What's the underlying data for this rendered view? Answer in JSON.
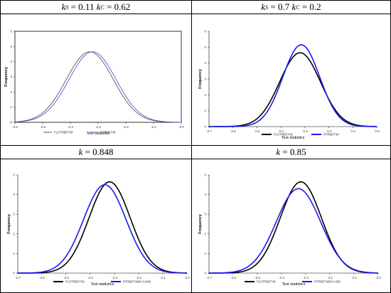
{
  "panels": [
    {
      "title_lead": "k",
      "title_sub1": "S",
      "title_mid": " = 0.11 ",
      "title_k2": "k",
      "title_sub2": "C",
      "title_tail": " = 0.62",
      "chart_data": {
        "type": "line",
        "xlabel": "Test statistics",
        "ylabel": "Frequency",
        "xlim": [
          -2.6,
          -2.0
        ],
        "ylim": [
          0,
          6
        ],
        "xticks": [
          "-2.6",
          "-2.5",
          "-2.4",
          "-2.3",
          "-2.2",
          "-2.1",
          "-2.0"
        ],
        "yticks": [
          "0",
          "1",
          "2",
          "3",
          "4",
          "5",
          "6"
        ],
        "legend_position": "bottom",
        "series": [
          {
            "name": "PLSTRBDT48",
            "color": "#555555",
            "mu": -2.33,
            "sd": 0.085,
            "peak": 4.65
          },
          {
            "name": "PFRBDT48",
            "color": "#5555dd",
            "mu": -2.32,
            "sd": 0.085,
            "peak": 4.65
          }
        ]
      }
    },
    {
      "title_lead": "k",
      "title_sub1": "S",
      "title_mid": " = 0.7 ",
      "title_k2": "k",
      "title_sub2": "C",
      "title_tail": " = 0.2",
      "chart_data": {
        "type": "line",
        "xlabel": "Test statistics",
        "ylabel": "Frequency",
        "xlim": [
          -2.7,
          -2.0
        ],
        "ylim": [
          0,
          6
        ],
        "xticks": [
          "-2.7",
          "-2.6",
          "-2.5",
          "-2.4",
          "-2.3",
          "-2.2",
          "-2.1",
          "-2.0"
        ],
        "yticks": [
          "0",
          "1",
          "2",
          "3",
          "4",
          "5",
          "6"
        ],
        "legend_position": "bottom",
        "series": [
          {
            "name": "PLSTRBDT48",
            "color": "#000000",
            "mu": -2.32,
            "sd": 0.085,
            "peak": 4.65
          },
          {
            "name": "PFRBDT48",
            "color": "#1a1aee",
            "mu": -2.315,
            "sd": 0.077,
            "peak": 5.15
          }
        ]
      }
    },
    {
      "title_lead": "k",
      "title_sub1": "",
      "title_mid": " = 0.848",
      "title_k2": "",
      "title_sub2": "",
      "title_tail": "",
      "chart_data": {
        "type": "line",
        "xlabel": "Test statistics",
        "ylabel": "Frequency",
        "xlim": [
          -2.7,
          -2.0
        ],
        "ylim": [
          0,
          5
        ],
        "xticks": [
          "-2.7",
          "-2.6",
          "-2.5",
          "-2.4",
          "-2.3",
          "-2.2",
          "-2.1",
          "-2.0"
        ],
        "yticks": [
          "0",
          "1",
          "2",
          "3",
          "4",
          "5"
        ],
        "legend_position": "bottom",
        "series": [
          {
            "name": "PLSTRBDT48",
            "color": "#000000",
            "mu": -2.32,
            "sd": 0.085,
            "peak": 4.65
          },
          {
            "name": "PFRBDT48(k=0.848)",
            "color": "#1a1aee",
            "mu": -2.34,
            "sd": 0.088,
            "peak": 4.5
          }
        ]
      }
    },
    {
      "title_lead": "k",
      "title_sub1": "",
      "title_mid": " = 0.85",
      "title_k2": "",
      "title_sub2": "",
      "title_tail": "",
      "chart_data": {
        "type": "line",
        "xlabel": "Test statistics",
        "ylabel": "Frequency",
        "xlim": [
          -2.7,
          -2.0
        ],
        "ylim": [
          0,
          5
        ],
        "xticks": [
          "-2.7",
          "-2.6",
          "-2.5",
          "-2.4",
          "-2.3",
          "-2.2",
          "-2.1",
          "-2.0"
        ],
        "yticks": [
          "0",
          "1",
          "2",
          "3",
          "4",
          "5"
        ],
        "legend_position": "bottom",
        "series": [
          {
            "name": "PLSTRBDT48",
            "color": "#000000",
            "mu": -2.32,
            "sd": 0.085,
            "peak": 4.65
          },
          {
            "name": "PFRBDT48(k=0.85)",
            "color": "#1a1aee",
            "mu": -2.33,
            "sd": 0.092,
            "peak": 4.3
          }
        ]
      }
    }
  ]
}
